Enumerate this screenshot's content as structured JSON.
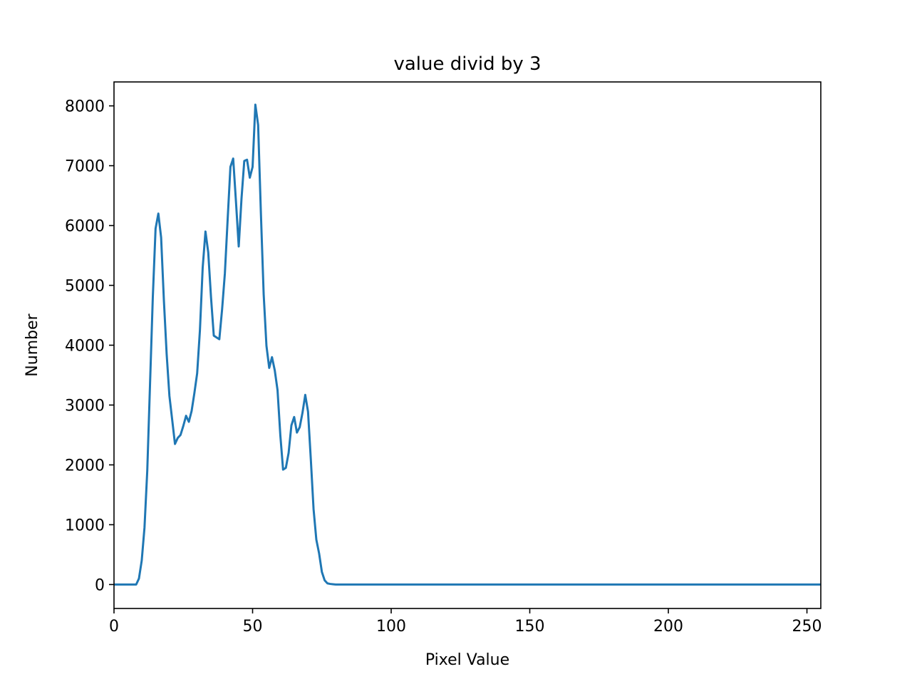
{
  "chart_data": {
    "type": "line",
    "title": "value divid by 3",
    "xlabel": "Pixel Value",
    "ylabel": "Number",
    "xlim": [
      0,
      255
    ],
    "ylim": [
      -400,
      8400
    ],
    "xticks": [
      0,
      50,
      100,
      150,
      200,
      250
    ],
    "yticks": [
      0,
      1000,
      2000,
      3000,
      4000,
      5000,
      6000,
      7000,
      8000
    ],
    "xtick_labels": [
      "0",
      "50",
      "100",
      "150",
      "200",
      "250"
    ],
    "ytick_labels": [
      "0",
      "1000",
      "2000",
      "3000",
      "4000",
      "5000",
      "6000",
      "7000",
      "8000"
    ],
    "grid": false,
    "line_color": "#1f77b4",
    "series": [
      {
        "x": [
          0,
          8,
          9,
          10,
          11,
          12,
          13,
          14,
          15,
          16,
          17,
          18,
          19,
          20,
          21,
          22,
          23,
          24,
          25,
          26,
          27,
          28,
          29,
          30,
          31,
          32,
          33,
          34,
          35,
          36,
          37,
          38,
          39,
          40,
          41,
          42,
          43,
          44,
          45,
          46,
          47,
          48,
          49,
          50,
          51,
          52,
          53,
          54,
          55,
          56,
          57,
          58,
          59,
          60,
          61,
          62,
          63,
          64,
          65,
          66,
          67,
          68,
          69,
          70,
          71,
          72,
          73,
          74,
          75,
          76,
          77,
          78,
          79,
          80,
          255
        ],
        "y": [
          0,
          0,
          100,
          400,
          950,
          1900,
          3350,
          4800,
          5950,
          6200,
          5800,
          4750,
          3850,
          3150,
          2750,
          2350,
          2450,
          2500,
          2650,
          2820,
          2720,
          2900,
          3200,
          3530,
          4250,
          5300,
          5900,
          5550,
          4800,
          4160,
          4130,
          4100,
          4600,
          5200,
          6100,
          6980,
          7120,
          6400,
          5650,
          6450,
          7080,
          7100,
          6800,
          6980,
          8020,
          7680,
          6200,
          4850,
          3990,
          3620,
          3800,
          3580,
          3250,
          2500,
          1920,
          1950,
          2200,
          2660,
          2800,
          2540,
          2630,
          2870,
          3170,
          2890,
          2100,
          1260,
          750,
          520,
          210,
          70,
          20,
          10,
          5,
          0,
          0
        ]
      }
    ]
  }
}
